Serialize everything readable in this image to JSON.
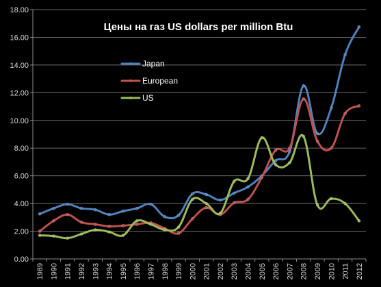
{
  "chart_data": {
    "type": "line",
    "title": "Цены на газ US dollars per million Btu",
    "xlabel": "",
    "ylabel": "",
    "ylim": [
      0,
      18
    ],
    "y_ticks": [
      "0.00",
      "2.00",
      "4.00",
      "6.00",
      "8.00",
      "10.00",
      "12.00",
      "14.00",
      "16.00",
      "18.00"
    ],
    "categories": [
      "1989",
      "1990",
      "1991",
      "1992",
      "1993",
      "1994",
      "1995",
      "1996",
      "1997",
      "1998",
      "1999",
      "2000",
      "2001",
      "2002",
      "2003",
      "2004",
      "2005",
      "2006",
      "2007",
      "2008",
      "2009",
      "2010",
      "2011",
      "2012"
    ],
    "grid": "horizontal",
    "smooth": true,
    "legend_position": "upper-left inside plot",
    "series": [
      {
        "name": "Japan",
        "color": "#4f81bd",
        "values": [
          3.25,
          3.65,
          3.95,
          3.65,
          3.55,
          3.2,
          3.45,
          3.65,
          3.95,
          3.05,
          3.15,
          4.7,
          4.65,
          4.25,
          4.75,
          5.2,
          6.0,
          7.1,
          7.75,
          12.5,
          9.05,
          10.9,
          14.75,
          16.75
        ]
      },
      {
        "name": "European",
        "color": "#c0504d",
        "values": [
          2.0,
          2.75,
          3.2,
          2.65,
          2.5,
          2.35,
          2.4,
          2.5,
          2.6,
          2.2,
          1.85,
          2.9,
          3.7,
          3.2,
          4.05,
          4.3,
          5.9,
          7.85,
          8.0,
          11.55,
          8.5,
          8.0,
          10.5,
          11.05
        ]
      },
      {
        "name": "US",
        "color": "#9bbb59",
        "values": [
          1.7,
          1.65,
          1.5,
          1.8,
          2.1,
          1.95,
          1.7,
          2.75,
          2.5,
          2.1,
          2.3,
          4.3,
          4.0,
          3.3,
          5.6,
          5.8,
          8.75,
          6.8,
          6.95,
          8.85,
          3.9,
          4.35,
          4.0,
          2.75
        ]
      }
    ]
  }
}
